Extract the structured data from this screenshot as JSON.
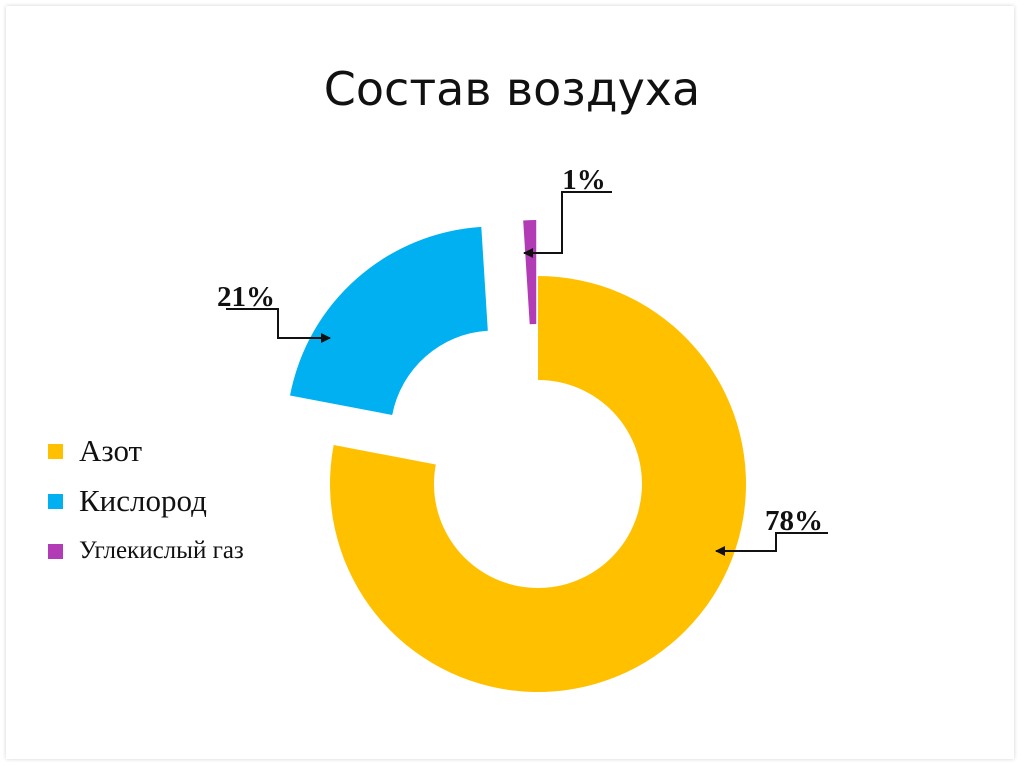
{
  "title": "Состав воздуха",
  "chart_data": {
    "type": "pie",
    "title": "Состав воздуха",
    "categories": [
      "Азот",
      "Кислород",
      "Углекислый газ"
    ],
    "values": [
      78,
      21,
      1
    ],
    "data_labels": [
      "78%",
      "21%",
      "1%"
    ],
    "colors": [
      "#FFC000",
      "#00B0F0",
      "#B23CB5"
    ],
    "donut": true,
    "exploded": true,
    "legend_position": "left"
  }
}
